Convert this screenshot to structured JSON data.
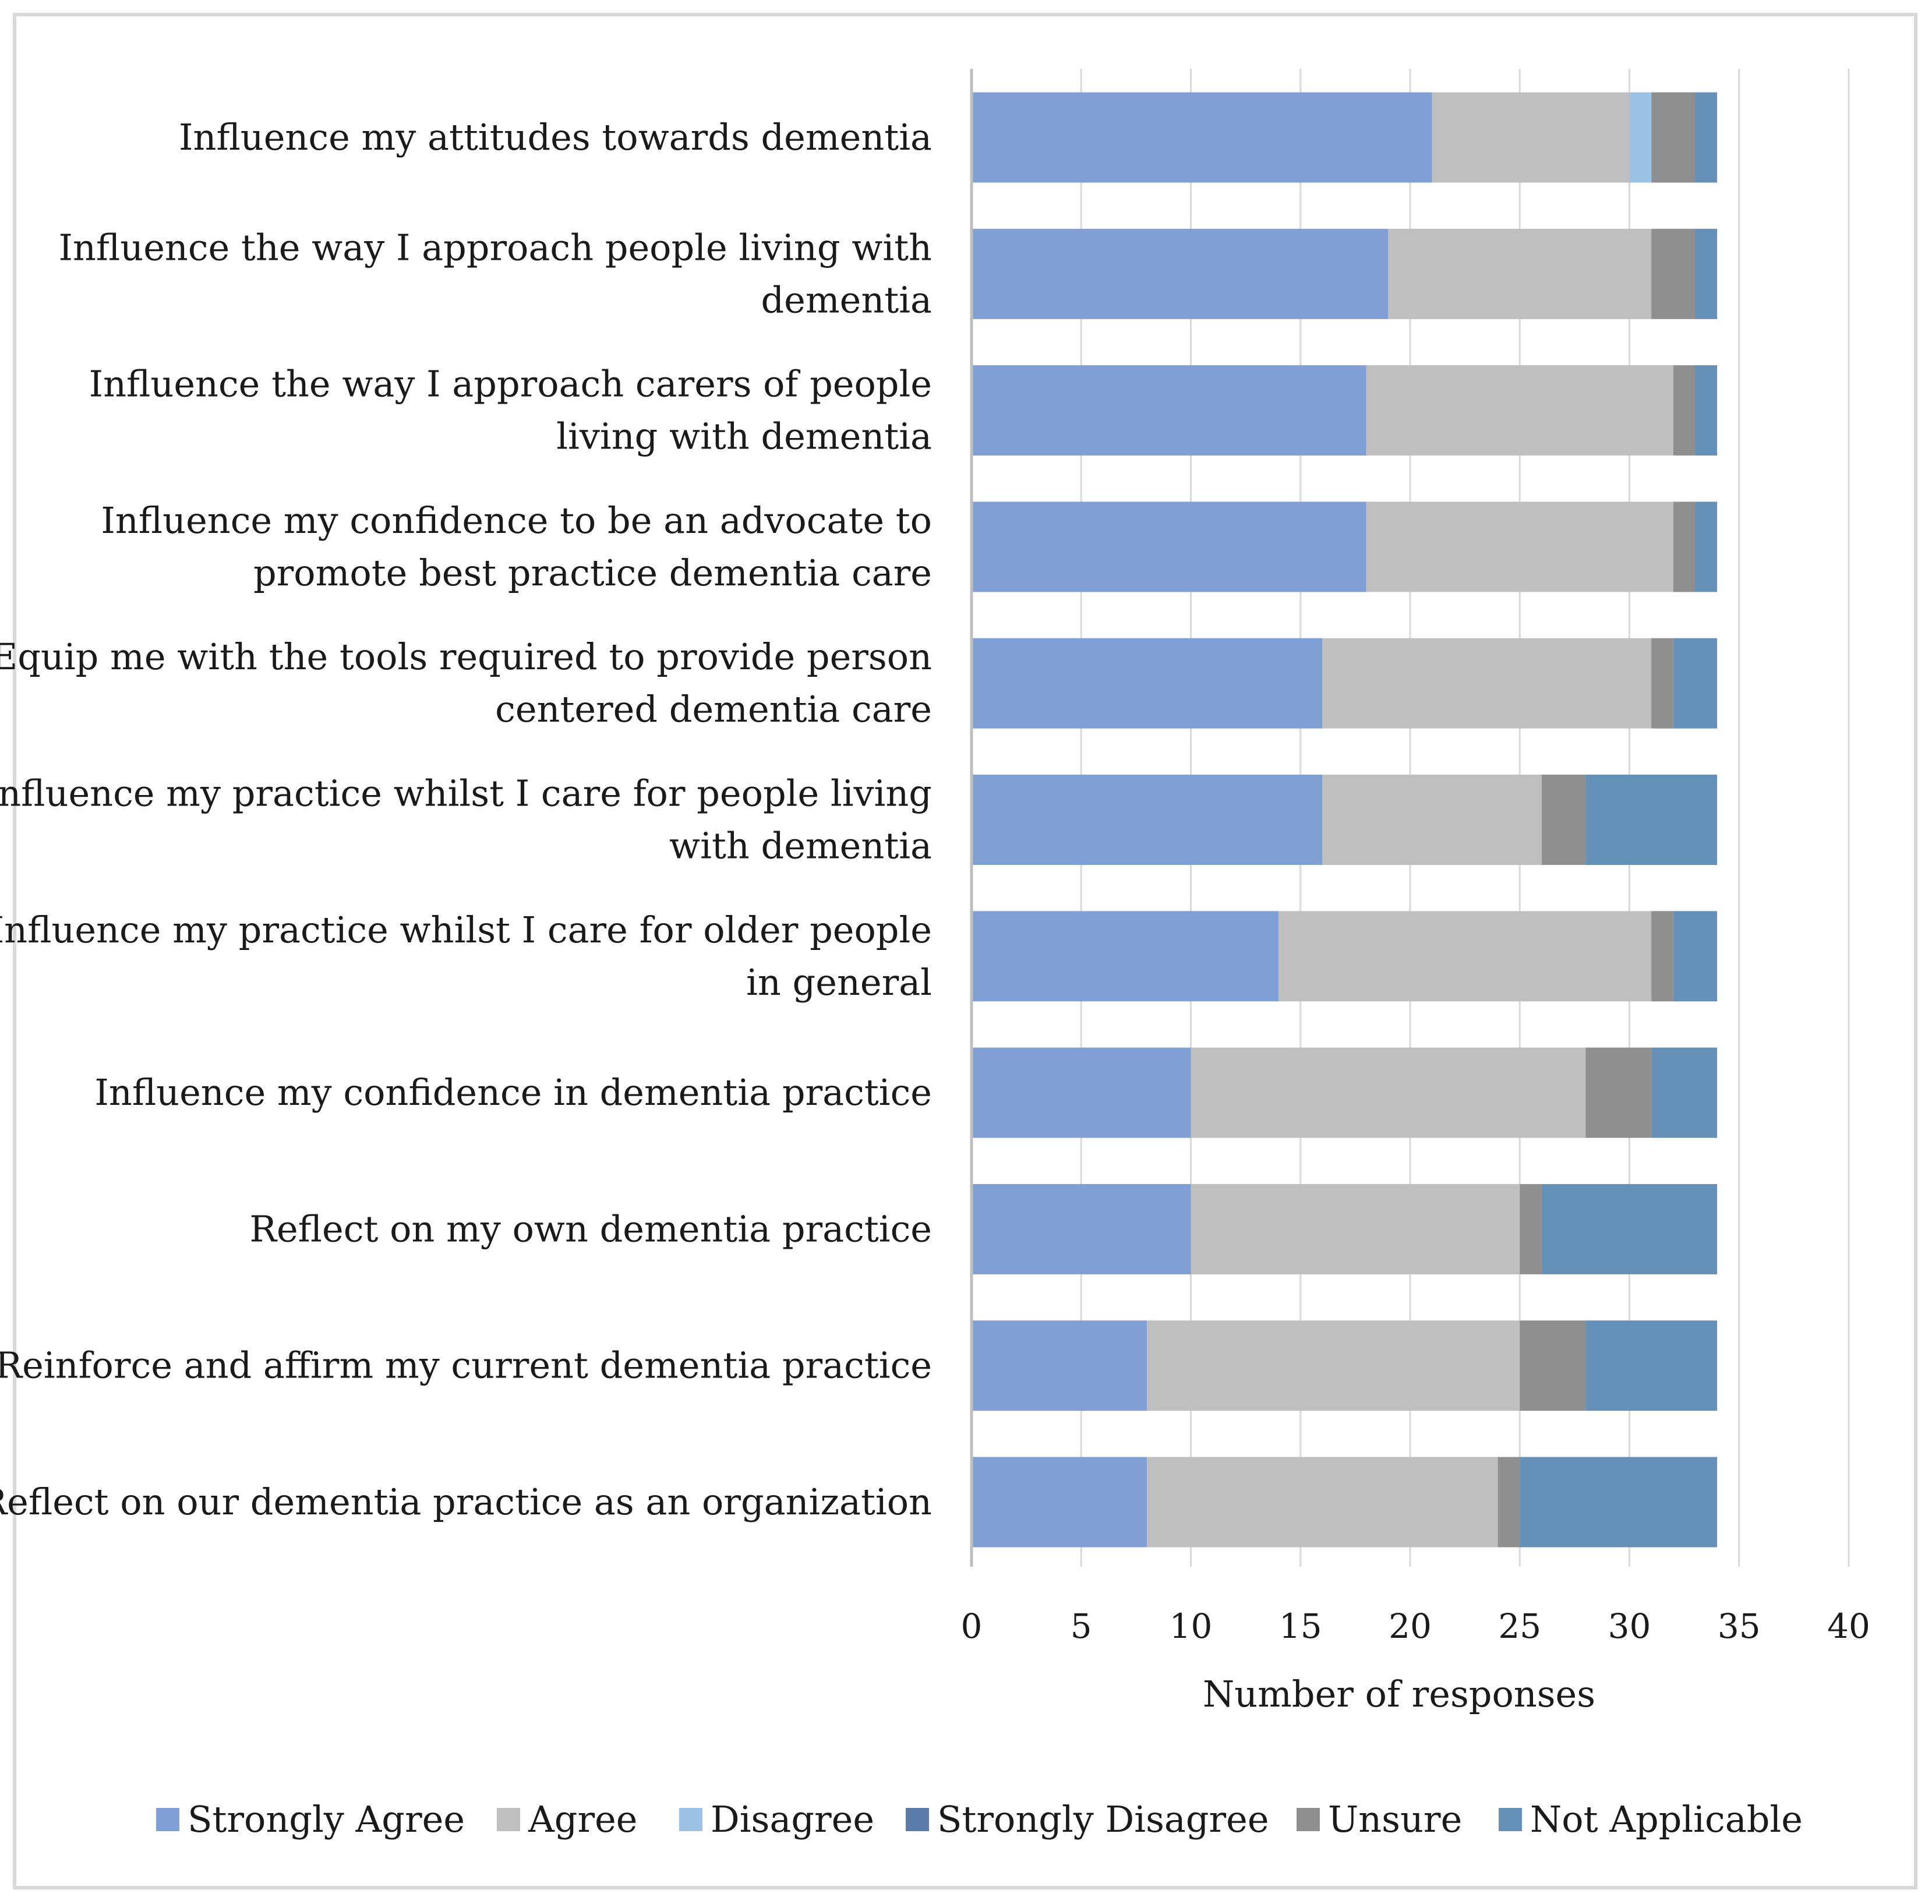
{
  "chart_data": {
    "type": "bar",
    "orientation": "horizontal",
    "stacked": true,
    "categories": [
      [
        "Influence my attitudes towards dementia"
      ],
      [
        "Influence the way I approach people living with",
        "dementia"
      ],
      [
        "Influence the way I approach carers of people",
        "living with dementia"
      ],
      [
        "Influence my confidence to be an advocate to",
        "promote best practice dementia care"
      ],
      [
        "Equip me with the tools required to provide person",
        "centered dementia care"
      ],
      [
        "Influence my practice whilst I care for people living",
        "with dementia"
      ],
      [
        "Influence my practice whilst I care for older people",
        "in general"
      ],
      [
        "Influence my confidence in dementia practice"
      ],
      [
        "Reflect on my own dementia practice"
      ],
      [
        "Reinforce and affirm my current dementia practice"
      ],
      [
        "Reflect on our dementia practice as an organization"
      ]
    ],
    "series": [
      {
        "name": "Strongly Agree",
        "color": "#7f9fd5",
        "values": [
          21,
          19,
          18,
          18,
          16,
          16,
          14,
          10,
          10,
          8,
          8
        ]
      },
      {
        "name": "Agree",
        "color": "#bfbfbf",
        "values": [
          9,
          12,
          14,
          14,
          15,
          10,
          17,
          18,
          15,
          17,
          16
        ]
      },
      {
        "name": "Disagree",
        "color": "#9cc3e6",
        "values": [
          1,
          0,
          0,
          0,
          0,
          0,
          0,
          0,
          0,
          0,
          0
        ]
      },
      {
        "name": "Strongly Disagree",
        "color": "#5b7bab",
        "values": [
          0,
          0,
          0,
          0,
          0,
          0,
          0,
          0,
          0,
          0,
          0
        ]
      },
      {
        "name": "Unsure",
        "color": "#8f8f8f",
        "values": [
          2,
          2,
          1,
          1,
          1,
          2,
          1,
          3,
          1,
          3,
          1
        ]
      },
      {
        "name": "Not Applicable",
        "color": "#6590b8",
        "values": [
          1,
          1,
          1,
          1,
          2,
          6,
          2,
          3,
          8,
          6,
          9
        ]
      }
    ],
    "xlabel": "Number of responses",
    "ylabel": "",
    "title": "",
    "xlim": [
      0,
      40
    ],
    "xticks": [
      0,
      5,
      10,
      15,
      20,
      25,
      30,
      35,
      40
    ],
    "grid": true,
    "legend_position": "bottom"
  }
}
